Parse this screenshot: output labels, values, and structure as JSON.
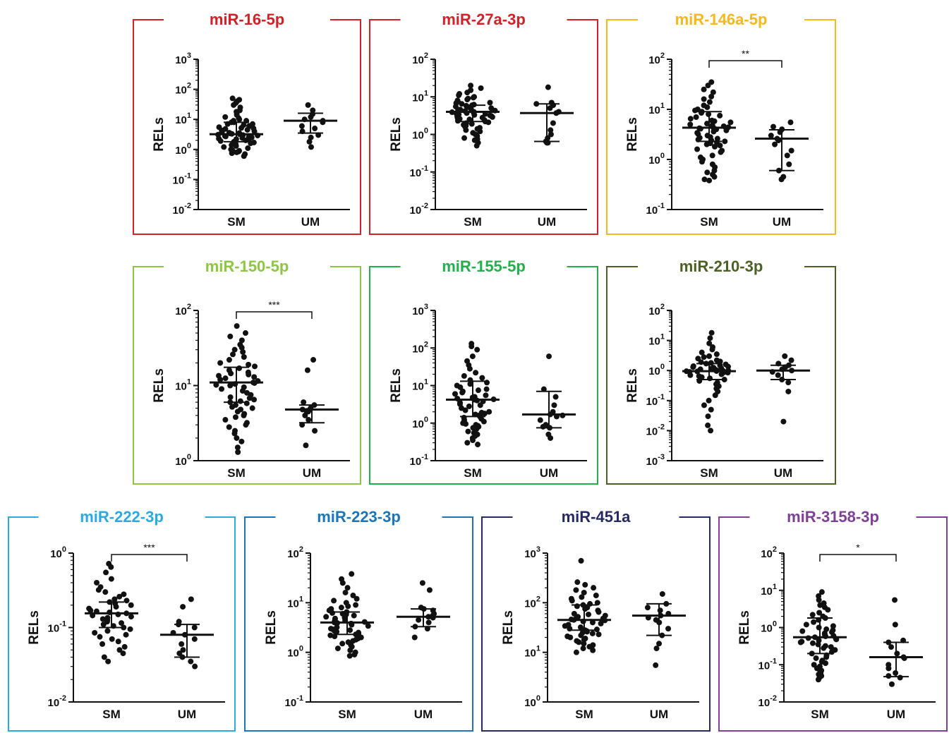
{
  "figure": {
    "y_label": "RELs",
    "categories": [
      "SM",
      "UM"
    ]
  },
  "chart_data": [
    {
      "type": "scatter",
      "title": "miR-16-5p",
      "color": "#d42027",
      "ylabel": "RELs",
      "categories": [
        "SM",
        "UM"
      ],
      "yscale": "log",
      "ylim_exp": [
        -2,
        3
      ],
      "yticks": [
        "10^-2",
        "10^-1",
        "10^0",
        "10^1",
        "10^2",
        "10^3"
      ],
      "median": [
        3.2,
        9.0
      ],
      "iqr": [
        [
          1.8,
          8.0
        ],
        [
          3.5,
          16.0
        ]
      ],
      "significance": "",
      "series": [
        {
          "name": "SM",
          "values": [
            50,
            45,
            40,
            35,
            30,
            25,
            20,
            18,
            16,
            14,
            12,
            11,
            10,
            9,
            9,
            8,
            8,
            7,
            7,
            6.5,
            6,
            6,
            5.5,
            5.2,
            5,
            4.8,
            4.5,
            4.3,
            4,
            3.8,
            3.6,
            3.5,
            3.4,
            3.3,
            3.2,
            3.1,
            3,
            2.9,
            2.8,
            2.7,
            2.6,
            2.5,
            2.4,
            2.3,
            2.2,
            2.1,
            2,
            1.9,
            1.8,
            1.7,
            1.6,
            1.5,
            1.4,
            1.3,
            1.2,
            1.1,
            1.0,
            0.95,
            0.9,
            0.85,
            0.8,
            0.75,
            0.7,
            0.6
          ]
        },
        {
          "name": "UM",
          "values": [
            30,
            20,
            15,
            12,
            10,
            9,
            8,
            6,
            5,
            4,
            3,
            2.5,
            1.8,
            1.2
          ]
        }
      ]
    },
    {
      "type": "scatter",
      "title": "miR-27a-3p",
      "color": "#d42027",
      "ylabel": "RELs",
      "categories": [
        "SM",
        "UM"
      ],
      "yscale": "log",
      "ylim_exp": [
        -2,
        2
      ],
      "yticks": [
        "10^-2",
        "10^-1",
        "10^0",
        "10^1",
        "10^2"
      ],
      "median": [
        4.0,
        3.7
      ],
      "iqr": [
        [
          2.2,
          6.0
        ],
        [
          0.65,
          6.5
        ]
      ],
      "significance": "",
      "series": [
        {
          "name": "SM",
          "values": [
            20,
            17,
            15,
            13,
            12,
            11,
            10,
            9.5,
            9,
            8.5,
            8,
            7.5,
            7,
            6.8,
            6.5,
            6.2,
            6,
            5.8,
            5.5,
            5.3,
            5,
            4.8,
            4.6,
            4.5,
            4.3,
            4.2,
            4.1,
            4,
            3.9,
            3.8,
            3.7,
            3.6,
            3.5,
            3.4,
            3.3,
            3.2,
            3.1,
            3,
            2.9,
            2.8,
            2.7,
            2.6,
            2.5,
            2.4,
            2.3,
            2.2,
            2.1,
            2,
            1.9,
            1.8,
            1.7,
            1.6,
            1.5,
            1.4,
            1.3,
            1.2,
            1.1,
            1.0,
            0.9,
            0.8,
            0.75,
            0.7,
            0.6,
            0.5
          ]
        },
        {
          "name": "UM",
          "values": [
            18,
            7,
            6.5,
            6,
            5,
            4,
            3.7,
            2,
            1.3,
            1,
            0.8,
            0.65,
            0.6,
            0.6
          ]
        }
      ]
    },
    {
      "type": "scatter",
      "title": "miR-146a-5p",
      "color": "#f6b81a",
      "ylabel": "RELs",
      "categories": [
        "SM",
        "UM"
      ],
      "yscale": "log",
      "ylim_exp": [
        -1,
        2
      ],
      "yticks": [
        "10^-1",
        "10^0",
        "10^1",
        "10^2"
      ],
      "median": [
        4.3,
        2.6
      ],
      "iqr": [
        [
          2.3,
          9.0
        ],
        [
          0.6,
          3.9
        ]
      ],
      "significance": "**",
      "series": [
        {
          "name": "SM",
          "values": [
            35,
            30,
            25,
            22,
            18,
            16,
            14,
            12,
            11,
            10,
            9.5,
            9,
            8.5,
            8,
            7.5,
            7,
            6.5,
            6,
            5.8,
            5.5,
            5.2,
            5,
            4.8,
            4.6,
            4.4,
            4.3,
            4.2,
            4.1,
            4,
            3.8,
            3.6,
            3.4,
            3.2,
            3,
            2.8,
            2.7,
            2.6,
            2.5,
            2.4,
            2.3,
            2.2,
            2.1,
            2,
            1.9,
            1.8,
            1.6,
            1.5,
            1.4,
            1.2,
            1.1,
            1,
            0.9,
            0.8,
            0.7,
            0.6,
            0.55,
            0.5,
            0.45,
            0.4,
            0.38
          ]
        },
        {
          "name": "UM",
          "values": [
            5.5,
            4.5,
            4,
            3.5,
            3,
            2.6,
            2.4,
            2,
            1.5,
            1.2,
            0.8,
            0.6,
            0.45,
            0.4
          ]
        }
      ]
    },
    {
      "type": "scatter",
      "title": "miR-150-5p",
      "color": "#8dc63f",
      "ylabel": "RELs",
      "categories": [
        "SM",
        "UM"
      ],
      "yscale": "log",
      "ylim_exp": [
        0,
        2
      ],
      "yticks": [
        "10^0",
        "10^1",
        "10^2"
      ],
      "median": [
        11.0,
        4.8
      ],
      "iqr": [
        [
          6.0,
          17.5
        ],
        [
          3.2,
          5.5
        ]
      ],
      "significance": "***",
      "series": [
        {
          "name": "SM",
          "values": [
            62,
            50,
            45,
            40,
            35,
            32,
            30,
            28,
            26,
            24,
            22,
            20,
            19,
            18,
            17,
            16,
            15,
            14.5,
            14,
            13.5,
            13,
            12.5,
            12,
            11.5,
            11,
            10.8,
            10.5,
            10.2,
            10,
            9.5,
            9,
            8.5,
            8,
            7.5,
            7,
            6.8,
            6.5,
            6.2,
            6,
            5.8,
            5.5,
            5.2,
            5,
            4.8,
            4.5,
            4.2,
            4,
            3.8,
            3.5,
            3.2,
            3,
            2.8,
            2.5,
            2.3,
            2,
            1.8,
            1.5,
            1.3
          ]
        },
        {
          "name": "UM",
          "values": [
            22,
            16,
            6,
            5.5,
            5,
            4.8,
            4.7,
            4.6,
            4.5,
            4,
            3.5,
            3,
            2.5,
            1.6
          ]
        }
      ]
    },
    {
      "type": "scatter",
      "title": "miR-155-5p",
      "color": "#22b04b",
      "ylabel": "RELs",
      "categories": [
        "SM",
        "UM"
      ],
      "yscale": "log",
      "ylim_exp": [
        -1,
        3
      ],
      "yticks": [
        "10^-1",
        "10^0",
        "10^1",
        "10^2",
        "10^3"
      ],
      "median": [
        4.2,
        1.7
      ],
      "iqr": [
        [
          1.5,
          13.0
        ],
        [
          0.75,
          7.0
        ]
      ],
      "significance": "",
      "series": [
        {
          "name": "SM",
          "values": [
            130,
            110,
            90,
            60,
            45,
            35,
            28,
            22,
            18,
            16,
            14,
            12,
            11,
            10,
            9,
            8,
            7.5,
            7,
            6.5,
            6,
            5.5,
            5,
            4.8,
            4.5,
            4.3,
            4.2,
            4,
            3.8,
            3.5,
            3.2,
            3,
            2.8,
            2.5,
            2.2,
            2,
            1.9,
            1.8,
            1.7,
            1.6,
            1.5,
            1.4,
            1.3,
            1.2,
            1.1,
            1,
            0.95,
            0.9,
            0.85,
            0.8,
            0.75,
            0.7,
            0.65,
            0.6,
            0.55,
            0.5,
            0.45,
            0.4,
            0.35,
            0.3,
            0.27
          ]
        },
        {
          "name": "UM",
          "values": [
            60,
            8,
            5,
            3,
            2,
            1.7,
            1.6,
            1.5,
            1.2,
            0.9,
            0.8,
            0.75,
            0.5,
            0.4
          ]
        }
      ]
    },
    {
      "type": "scatter",
      "title": "miR-210-3p",
      "color": "#4b6122",
      "ylabel": "RELs",
      "categories": [
        "SM",
        "UM"
      ],
      "yscale": "log",
      "ylim_exp": [
        -3,
        2
      ],
      "yticks": [
        "10^-3",
        "10^-2",
        "10^-1",
        "10^0",
        "10^1",
        "10^2"
      ],
      "median": [
        0.95,
        1.0
      ],
      "iqr": [
        [
          0.5,
          1.7
        ],
        [
          0.5,
          1.5
        ]
      ],
      "significance": "",
      "series": [
        {
          "name": "SM",
          "values": [
            18,
            12,
            8,
            6,
            5,
            4,
            3.5,
            3,
            2.8,
            2.5,
            2.2,
            2,
            1.9,
            1.8,
            1.7,
            1.6,
            1.5,
            1.4,
            1.35,
            1.3,
            1.25,
            1.2,
            1.15,
            1.1,
            1.05,
            1.0,
            0.98,
            0.96,
            0.95,
            0.93,
            0.9,
            0.88,
            0.85,
            0.8,
            0.75,
            0.7,
            0.65,
            0.6,
            0.55,
            0.5,
            0.45,
            0.4,
            0.35,
            0.3,
            0.25,
            0.2,
            0.15,
            0.1,
            0.07,
            0.05,
            0.03,
            0.015,
            0.01
          ]
        },
        {
          "name": "UM",
          "values": [
            3,
            2.2,
            1.7,
            1.5,
            1.3,
            1.1,
            1.0,
            0.9,
            0.7,
            0.5,
            0.4,
            0.2,
            0.02
          ]
        }
      ]
    },
    {
      "type": "scatter",
      "title": "miR-222-3p",
      "color": "#29abe2",
      "ylabel": "RELs",
      "categories": [
        "SM",
        "UM"
      ],
      "yscale": "log",
      "ylim_exp": [
        -2,
        0
      ],
      "yticks": [
        "10^-2",
        "10^-1",
        "10^0"
      ],
      "median": [
        0.155,
        0.08
      ],
      "iqr": [
        [
          0.1,
          0.22
        ],
        [
          0.04,
          0.11
        ]
      ],
      "significance": "***",
      "series": [
        {
          "name": "SM",
          "values": [
            0.72,
            0.65,
            0.55,
            0.45,
            0.4,
            0.35,
            0.32,
            0.3,
            0.28,
            0.26,
            0.24,
            0.23,
            0.22,
            0.21,
            0.2,
            0.19,
            0.18,
            0.17,
            0.165,
            0.16,
            0.155,
            0.15,
            0.145,
            0.14,
            0.135,
            0.13,
            0.125,
            0.12,
            0.115,
            0.11,
            0.105,
            0.1,
            0.095,
            0.09,
            0.085,
            0.08,
            0.075,
            0.07,
            0.065,
            0.06,
            0.055,
            0.05,
            0.045,
            0.04,
            0.035
          ]
        },
        {
          "name": "UM",
          "values": [
            0.24,
            0.19,
            0.12,
            0.11,
            0.1,
            0.085,
            0.08,
            0.07,
            0.06,
            0.05,
            0.045,
            0.04,
            0.035,
            0.03
          ]
        }
      ]
    },
    {
      "type": "scatter",
      "title": "miR-223-3p",
      "color": "#1a75bb",
      "ylabel": "RELs",
      "categories": [
        "SM",
        "UM"
      ],
      "yscale": "log",
      "ylim_exp": [
        -1,
        2
      ],
      "yticks": [
        "10^-1",
        "10^0",
        "10^1",
        "10^2"
      ],
      "median": [
        4.0,
        5.2
      ],
      "iqr": [
        [
          2.3,
          6.5
        ],
        [
          3.3,
          7.5
        ]
      ],
      "significance": "",
      "series": [
        {
          "name": "SM",
          "values": [
            38,
            30,
            25,
            20,
            16,
            14,
            12,
            11,
            10,
            9,
            8.5,
            8,
            7.5,
            7,
            6.5,
            6.2,
            6,
            5.8,
            5.5,
            5.2,
            5,
            4.8,
            4.6,
            4.4,
            4.2,
            4.1,
            4,
            3.9,
            3.8,
            3.6,
            3.4,
            3.2,
            3,
            2.9,
            2.8,
            2.7,
            2.6,
            2.5,
            2.4,
            2.3,
            2.2,
            2.1,
            2,
            1.9,
            1.8,
            1.7,
            1.6,
            1.5,
            1.4,
            1.3,
            1.2,
            1.1,
            1.0,
            0.9,
            0.85
          ]
        },
        {
          "name": "UM",
          "values": [
            25,
            18,
            8,
            7.5,
            7,
            6,
            5.5,
            5.2,
            5,
            4.5,
            4,
            3.3,
            3,
            2
          ]
        }
      ]
    },
    {
      "type": "scatter",
      "title": "miR-451a",
      "color": "#262964",
      "ylabel": "RELs",
      "categories": [
        "SM",
        "UM"
      ],
      "yscale": "log",
      "ylim_exp": [
        0,
        3
      ],
      "yticks": [
        "10^0",
        "10^1",
        "10^2",
        "10^3"
      ],
      "median": [
        45,
        55
      ],
      "iqr": [
        [
          28,
          90
        ],
        [
          22,
          95
        ]
      ],
      "significance": "",
      "series": [
        {
          "name": "SM",
          "values": [
            700,
            260,
            230,
            200,
            180,
            160,
            140,
            130,
            120,
            110,
            100,
            95,
            90,
            85,
            80,
            75,
            70,
            65,
            60,
            58,
            55,
            52,
            50,
            48,
            46,
            45,
            44,
            42,
            40,
            38,
            36,
            34,
            32,
            30,
            29,
            28,
            27,
            26,
            25,
            24,
            23,
            22,
            21,
            20,
            19,
            18,
            17,
            16,
            15,
            14,
            13,
            12,
            11,
            10
          ]
        },
        {
          "name": "UM",
          "values": [
            150,
            95,
            80,
            70,
            60,
            55,
            50,
            45,
            40,
            30,
            22,
            15,
            12,
            5.5
          ]
        }
      ]
    },
    {
      "type": "scatter",
      "title": "miR-3158-3p",
      "color": "#7f3f98",
      "ylabel": "RELs",
      "categories": [
        "SM",
        "UM"
      ],
      "yscale": "log",
      "ylim_exp": [
        -2,
        2
      ],
      "yticks": [
        "10^-2",
        "10^-1",
        "10^0",
        "10^1",
        "10^2"
      ],
      "median": [
        0.55,
        0.16
      ],
      "iqr": [
        [
          0.2,
          1.8
        ],
        [
          0.048,
          0.4
        ]
      ],
      "significance": "*",
      "series": [
        {
          "name": "SM",
          "values": [
            9,
            7,
            5.5,
            4.5,
            4,
            3.5,
            3,
            2.5,
            2.2,
            2,
            1.8,
            1.6,
            1.4,
            1.2,
            1.1,
            1,
            0.9,
            0.85,
            0.8,
            0.75,
            0.7,
            0.65,
            0.6,
            0.58,
            0.55,
            0.52,
            0.5,
            0.48,
            0.45,
            0.42,
            0.4,
            0.38,
            0.35,
            0.32,
            0.3,
            0.28,
            0.25,
            0.22,
            0.2,
            0.18,
            0.16,
            0.15,
            0.13,
            0.12,
            0.11,
            0.1,
            0.09,
            0.08,
            0.07,
            0.065,
            0.06,
            0.055,
            0.05,
            0.045,
            0.04
          ]
        },
        {
          "name": "UM",
          "values": [
            5.5,
            1.2,
            0.45,
            0.4,
            0.3,
            0.2,
            0.16,
            0.15,
            0.1,
            0.08,
            0.06,
            0.05,
            0.045,
            0.03
          ]
        }
      ]
    }
  ]
}
